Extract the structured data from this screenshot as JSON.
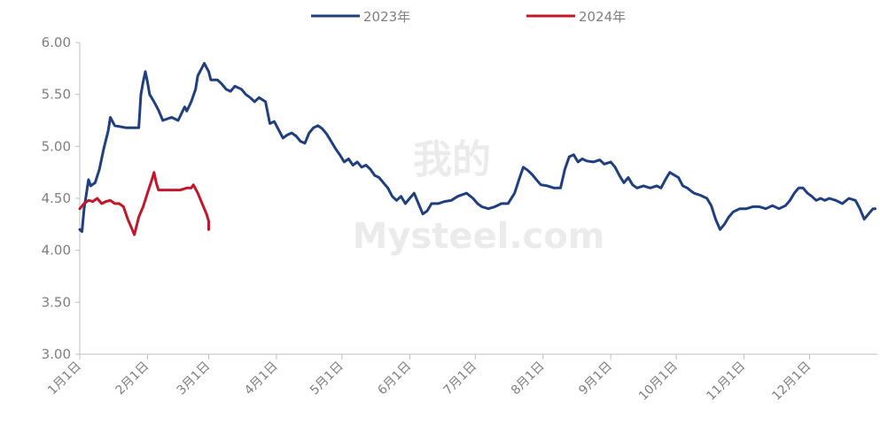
{
  "chart_data": {
    "type": "line",
    "title": "",
    "xlabel": "",
    "ylabel": "",
    "ylim": [
      3.0,
      6.0
    ],
    "y_ticks": [
      "3.00",
      "3.50",
      "4.00",
      "4.50",
      "5.00",
      "5.50",
      "6.00"
    ],
    "x_ticks": [
      "1月1日",
      "2月1日",
      "3月1日",
      "4月1日",
      "5月1日",
      "6月1日",
      "7月1日",
      "8月1日",
      "9月1日",
      "10月1日",
      "11月1日",
      "12月1日"
    ],
    "legend_position": "top",
    "grid": false,
    "series": [
      {
        "name": "2023年",
        "color": "#1f3f7f",
        "points": [
          [
            "01-01",
            4.2
          ],
          [
            "01-02",
            4.18
          ],
          [
            "01-03",
            4.4
          ],
          [
            "01-05",
            4.68
          ],
          [
            "01-06",
            4.62
          ],
          [
            "01-08",
            4.65
          ],
          [
            "01-10",
            4.78
          ],
          [
            "01-12",
            4.98
          ],
          [
            "01-14",
            5.15
          ],
          [
            "01-15",
            5.28
          ],
          [
            "01-17",
            5.2
          ],
          [
            "01-22",
            5.18
          ],
          [
            "01-26",
            5.18
          ],
          [
            "01-28",
            5.18
          ],
          [
            "01-29",
            5.5
          ],
          [
            "01-30",
            5.62
          ],
          [
            "01-31",
            5.72
          ],
          [
            "02-01",
            5.62
          ],
          [
            "02-02",
            5.5
          ],
          [
            "02-04",
            5.43
          ],
          [
            "02-06",
            5.35
          ],
          [
            "02-08",
            5.25
          ],
          [
            "02-12",
            5.28
          ],
          [
            "02-15",
            5.25
          ],
          [
            "02-18",
            5.38
          ],
          [
            "02-19",
            5.34
          ],
          [
            "02-21",
            5.43
          ],
          [
            "02-23",
            5.55
          ],
          [
            "02-24",
            5.68
          ],
          [
            "02-26",
            5.76
          ],
          [
            "02-27",
            5.8
          ],
          [
            "03-01",
            5.72
          ],
          [
            "03-02",
            5.64
          ],
          [
            "03-05",
            5.64
          ],
          [
            "03-07",
            5.6
          ],
          [
            "03-09",
            5.55
          ],
          [
            "03-11",
            5.53
          ],
          [
            "03-13",
            5.58
          ],
          [
            "03-16",
            5.55
          ],
          [
            "03-18",
            5.5
          ],
          [
            "03-20",
            5.47
          ],
          [
            "03-22",
            5.43
          ],
          [
            "03-24",
            5.47
          ],
          [
            "03-27",
            5.43
          ],
          [
            "03-29",
            5.22
          ],
          [
            "03-31",
            5.24
          ],
          [
            "04-02",
            5.16
          ],
          [
            "04-04",
            5.08
          ],
          [
            "04-06",
            5.11
          ],
          [
            "04-08",
            5.13
          ],
          [
            "04-10",
            5.1
          ],
          [
            "04-12",
            5.05
          ],
          [
            "04-14",
            5.03
          ],
          [
            "04-16",
            5.13
          ],
          [
            "04-18",
            5.18
          ],
          [
            "04-20",
            5.2
          ],
          [
            "04-22",
            5.17
          ],
          [
            "04-24",
            5.12
          ],
          [
            "04-26",
            5.05
          ],
          [
            "04-28",
            4.98
          ],
          [
            "04-30",
            4.92
          ],
          [
            "05-02",
            4.85
          ],
          [
            "05-04",
            4.88
          ],
          [
            "05-06",
            4.82
          ],
          [
            "05-08",
            4.85
          ],
          [
            "05-10",
            4.8
          ],
          [
            "05-12",
            4.82
          ],
          [
            "05-14",
            4.78
          ],
          [
            "05-16",
            4.72
          ],
          [
            "05-18",
            4.7
          ],
          [
            "05-20",
            4.65
          ],
          [
            "05-22",
            4.6
          ],
          [
            "05-24",
            4.52
          ],
          [
            "05-26",
            4.48
          ],
          [
            "05-28",
            4.52
          ],
          [
            "05-30",
            4.45
          ],
          [
            "06-01",
            4.5
          ],
          [
            "06-03",
            4.55
          ],
          [
            "06-05",
            4.45
          ],
          [
            "06-07",
            4.35
          ],
          [
            "06-09",
            4.38
          ],
          [
            "06-11",
            4.45
          ],
          [
            "06-14",
            4.45
          ],
          [
            "06-17",
            4.47
          ],
          [
            "06-20",
            4.48
          ],
          [
            "06-23",
            4.52
          ],
          [
            "06-27",
            4.55
          ],
          [
            "06-30",
            4.5
          ],
          [
            "07-02",
            4.45
          ],
          [
            "07-04",
            4.42
          ],
          [
            "07-07",
            4.4
          ],
          [
            "07-10",
            4.42
          ],
          [
            "07-13",
            4.45
          ],
          [
            "07-16",
            4.45
          ],
          [
            "07-19",
            4.55
          ],
          [
            "07-21",
            4.68
          ],
          [
            "07-23",
            4.8
          ],
          [
            "07-25",
            4.77
          ],
          [
            "07-27",
            4.73
          ],
          [
            "07-29",
            4.68
          ],
          [
            "07-31",
            4.63
          ],
          [
            "08-03",
            4.62
          ],
          [
            "08-06",
            4.6
          ],
          [
            "08-09",
            4.6
          ],
          [
            "08-11",
            4.78
          ],
          [
            "08-13",
            4.9
          ],
          [
            "08-15",
            4.92
          ],
          [
            "08-17",
            4.85
          ],
          [
            "08-19",
            4.88
          ],
          [
            "08-21",
            4.86
          ],
          [
            "08-24",
            4.85
          ],
          [
            "08-27",
            4.87
          ],
          [
            "08-29",
            4.83
          ],
          [
            "09-01",
            4.85
          ],
          [
            "09-03",
            4.8
          ],
          [
            "09-05",
            4.72
          ],
          [
            "09-07",
            4.65
          ],
          [
            "09-09",
            4.7
          ],
          [
            "09-11",
            4.63
          ],
          [
            "09-13",
            4.6
          ],
          [
            "09-16",
            4.62
          ],
          [
            "09-19",
            4.6
          ],
          [
            "09-22",
            4.62
          ],
          [
            "09-24",
            4.6
          ],
          [
            "09-26",
            4.68
          ],
          [
            "09-28",
            4.75
          ],
          [
            "10-02",
            4.7
          ],
          [
            "10-04",
            4.62
          ],
          [
            "10-06",
            4.6
          ],
          [
            "10-09",
            4.55
          ],
          [
            "10-12",
            4.53
          ],
          [
            "10-15",
            4.5
          ],
          [
            "10-17",
            4.43
          ],
          [
            "10-19",
            4.3
          ],
          [
            "10-21",
            4.2
          ],
          [
            "10-23",
            4.25
          ],
          [
            "10-25",
            4.32
          ],
          [
            "10-27",
            4.37
          ],
          [
            "10-30",
            4.4
          ],
          [
            "11-02",
            4.4
          ],
          [
            "11-05",
            4.42
          ],
          [
            "11-08",
            4.42
          ],
          [
            "11-11",
            4.4
          ],
          [
            "11-14",
            4.43
          ],
          [
            "11-17",
            4.4
          ],
          [
            "11-20",
            4.43
          ],
          [
            "11-22",
            4.48
          ],
          [
            "11-24",
            4.55
          ],
          [
            "11-26",
            4.6
          ],
          [
            "11-28",
            4.6
          ],
          [
            "11-30",
            4.55
          ],
          [
            "12-02",
            4.52
          ],
          [
            "12-04",
            4.48
          ],
          [
            "12-06",
            4.5
          ],
          [
            "12-08",
            4.48
          ],
          [
            "12-10",
            4.5
          ],
          [
            "12-13",
            4.48
          ],
          [
            "12-16",
            4.45
          ],
          [
            "12-19",
            4.5
          ],
          [
            "12-22",
            4.48
          ],
          [
            "12-24",
            4.4
          ],
          [
            "12-26",
            4.3
          ],
          [
            "12-28",
            4.35
          ],
          [
            "12-30",
            4.4
          ],
          [
            "12-31",
            4.4
          ]
        ]
      },
      {
        "name": "2024年",
        "color": "#c0182a",
        "points": [
          [
            "01-01",
            4.4
          ],
          [
            "01-03",
            4.45
          ],
          [
            "01-05",
            4.48
          ],
          [
            "01-07",
            4.47
          ],
          [
            "01-09",
            4.5
          ],
          [
            "01-11",
            4.45
          ],
          [
            "01-13",
            4.47
          ],
          [
            "01-15",
            4.48
          ],
          [
            "01-17",
            4.45
          ],
          [
            "01-19",
            4.45
          ],
          [
            "01-21",
            4.42
          ],
          [
            "01-23",
            4.3
          ],
          [
            "01-25",
            4.2
          ],
          [
            "01-26",
            4.15
          ],
          [
            "01-28",
            4.32
          ],
          [
            "01-30",
            4.42
          ],
          [
            "02-01",
            4.55
          ],
          [
            "02-03",
            4.68
          ],
          [
            "02-04",
            4.75
          ],
          [
            "02-05",
            4.65
          ],
          [
            "02-06",
            4.58
          ],
          [
            "02-09",
            4.58
          ],
          [
            "02-13",
            4.58
          ],
          [
            "02-16",
            4.58
          ],
          [
            "02-19",
            4.6
          ],
          [
            "02-21",
            4.6
          ],
          [
            "02-22",
            4.63
          ],
          [
            "02-24",
            4.55
          ],
          [
            "02-26",
            4.45
          ],
          [
            "02-28",
            4.35
          ],
          [
            "02-29",
            4.28
          ],
          [
            "03-01",
            4.2
          ]
        ]
      }
    ],
    "watermark": [
      "我的",
      "Mysteel.com"
    ]
  }
}
